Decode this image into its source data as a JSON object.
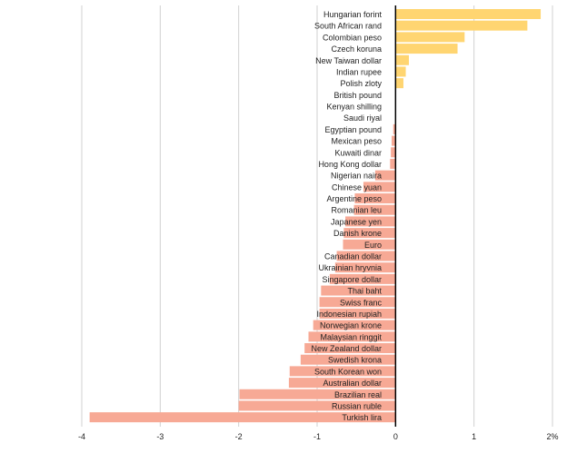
{
  "chart_data": {
    "type": "bar",
    "orientation": "horizontal",
    "categories": [
      "Hungarian forint",
      "South African rand",
      "Colombian peso",
      "Czech koruna",
      "New Taiwan dollar",
      "Indian rupee",
      "Polish zloty",
      "British pound",
      "Kenyan shilling",
      "Saudi riyal",
      "Egyptian pound",
      "Mexican peso",
      "Kuwaiti dinar",
      "Hong Kong dollar",
      "Nigerian naira",
      "Chinese yuan",
      "Argentine peso",
      "Romanian leu",
      "Japanese yen",
      "Danish krone",
      "Euro",
      "Canadian dollar",
      "Ukrainian hryvnia",
      "Singapore dollar",
      "Thai baht",
      "Swiss franc",
      "Indonesian rupiah",
      "Norwegian krone",
      "Malaysian ringgit",
      "New Zealand dollar",
      "Swedish krona",
      "South Korean won",
      "Australian dollar",
      "Brazilian real",
      "Russian ruble",
      "Turkish lira"
    ],
    "values": [
      1.85,
      1.68,
      0.88,
      0.79,
      0.17,
      0.13,
      0.1,
      0,
      0,
      0,
      -0.03,
      -0.05,
      -0.06,
      -0.07,
      -0.26,
      -0.41,
      -0.52,
      -0.53,
      -0.64,
      -0.66,
      -0.67,
      -0.75,
      -0.77,
      -0.84,
      -0.95,
      -0.97,
      -0.97,
      -1.05,
      -1.11,
      -1.16,
      -1.21,
      -1.35,
      -1.36,
      -1.99,
      -2.0,
      -3.9
    ],
    "xlim": [
      -4,
      2
    ],
    "x_ticks": [
      "-4",
      "-3",
      "-2",
      "-1",
      "0",
      "1",
      "2%"
    ],
    "x_tick_values": [
      -4,
      -3,
      -2,
      -1,
      0,
      1,
      2
    ],
    "grid": true,
    "colors": {
      "positive": "#ffd571",
      "negative": "#f7a995",
      "zero_line": "#000000",
      "grid": "#d0d0d0"
    }
  }
}
